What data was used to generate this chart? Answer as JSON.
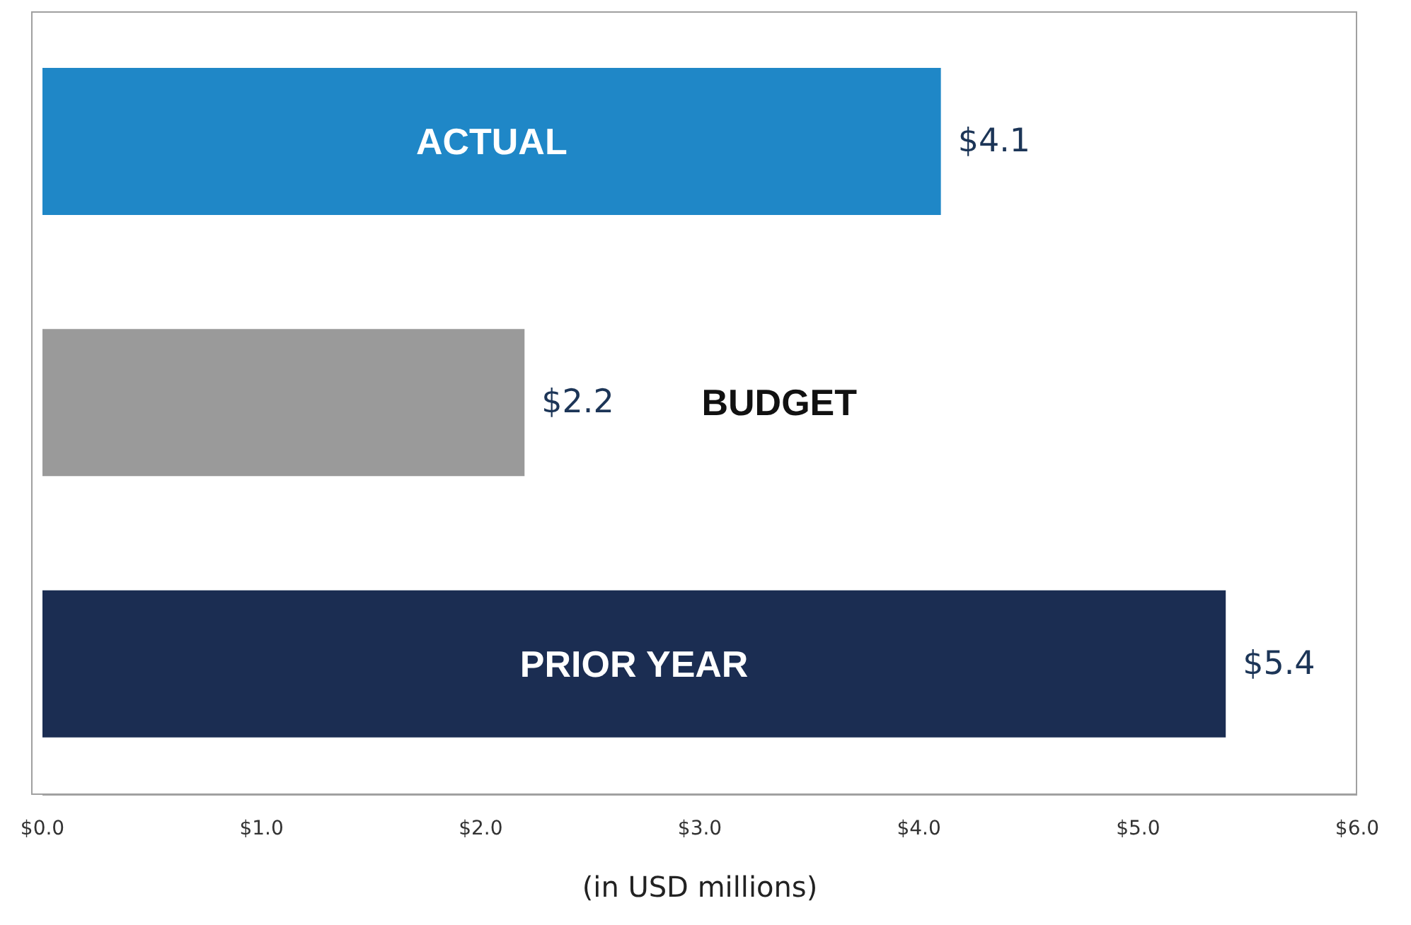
{
  "chart_data": {
    "type": "bar",
    "orientation": "horizontal",
    "categories": [
      "ACTUAL",
      "BUDGET",
      "PRIOR YEAR"
    ],
    "values": [
      4.1,
      2.2,
      5.4
    ],
    "colors": [
      "#1f87c7",
      "#9a9a9a",
      "#1b2d52"
    ],
    "value_labels": [
      "$4.1",
      "$2.2",
      "$5.4"
    ],
    "xlim": [
      0,
      6
    ],
    "xticks": [
      {
        "value": 0,
        "label": "$0.0"
      },
      {
        "value": 1,
        "label": "$1.0"
      },
      {
        "value": 2,
        "label": "$2.0"
      },
      {
        "value": 3,
        "label": "$3.0"
      },
      {
        "value": 4,
        "label": "$4.0"
      },
      {
        "value": 5,
        "label": "$5.0"
      },
      {
        "value": 6,
        "label": "$6.0"
      }
    ],
    "xlabel": "(in USD millions)"
  }
}
